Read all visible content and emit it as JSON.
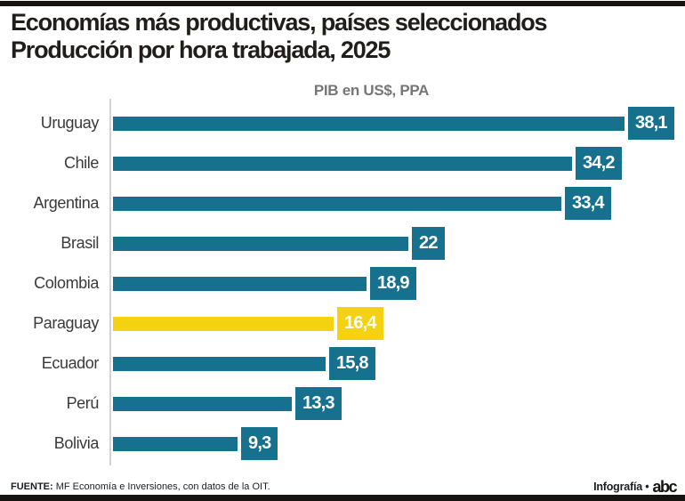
{
  "title": {
    "line1": "Economías más productivas, países seleccionados",
    "line2": "Producción por hora trabajada, 2025"
  },
  "subtitle": "PIB en US$, PPA",
  "chart_data": {
    "type": "bar",
    "orientation": "horizontal",
    "title": "PIB en US$, PPA",
    "categories": [
      "Uruguay",
      "Chile",
      "Argentina",
      "Brasil",
      "Colombia",
      "Paraguay",
      "Ecuador",
      "Perú",
      "Bolivia"
    ],
    "values": [
      38.1,
      34.2,
      33.4,
      22,
      18.9,
      16.4,
      15.8,
      13.3,
      9.3
    ],
    "value_labels": [
      "38,1",
      "34,2",
      "33,4",
      "22",
      "18,9",
      "16,4",
      "15,8",
      "13,3",
      "9,3"
    ],
    "highlight_category": "Paraguay",
    "bar_color": "#16718F",
    "highlight_color": "#F5D211",
    "xlim": [
      0,
      42.5
    ],
    "grid": false,
    "legend": null
  },
  "footer": {
    "source_label": "FUENTE:",
    "source_text": " MF Economía e Inversiones, con datos de la OIT.",
    "credit": "Infografía •",
    "logo_text": "abc"
  }
}
